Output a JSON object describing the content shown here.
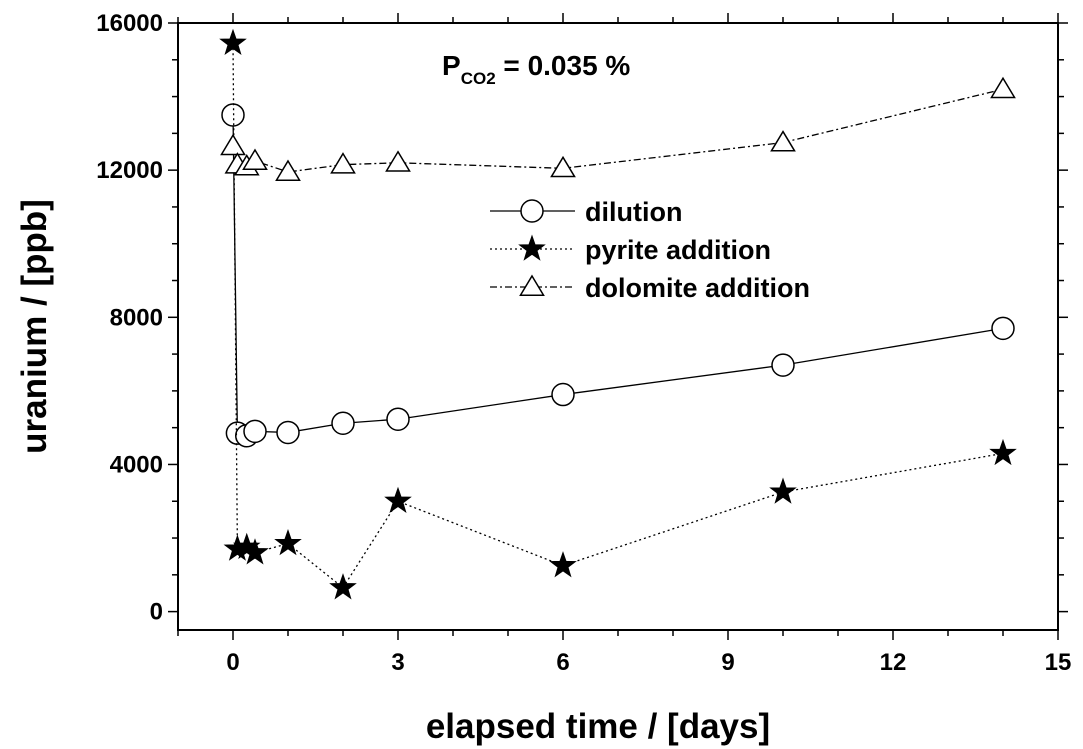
{
  "chart_data": {
    "type": "scatter",
    "title": "",
    "xlabel": "elapsed time / [days]",
    "ylabel": "uranium / [ppb]",
    "xlim": [
      -1,
      15
    ],
    "ylim": [
      -500,
      16000
    ],
    "xticks": [
      0,
      3,
      6,
      9,
      12,
      15
    ],
    "yticks": [
      0,
      4000,
      8000,
      12000,
      16000
    ],
    "xtick_labels": [
      "0",
      "3",
      "6",
      "9",
      "12",
      "15"
    ],
    "ytick_labels": [
      "0",
      "4000",
      "8000",
      "12000",
      "16000"
    ],
    "grid": false,
    "legend_position": "center-right",
    "annotation": {
      "main": "P",
      "sub": "CO2",
      "rest": " = 0.035 %"
    },
    "series": [
      {
        "name": "dilution",
        "marker": "circle",
        "line_style": "solid",
        "x": [
          0,
          0.08,
          0.25,
          0.4,
          1,
          2,
          3,
          6,
          10,
          14
        ],
        "y": [
          13500,
          4850,
          4780,
          4900,
          4870,
          5120,
          5230,
          5900,
          6700,
          7700
        ]
      },
      {
        "name": "pyrite addition",
        "marker": "star",
        "line_style": "dotted",
        "x": [
          0,
          0.08,
          0.25,
          0.4,
          1,
          2,
          3,
          6,
          10,
          14
        ],
        "y": [
          15450,
          1700,
          1750,
          1600,
          1850,
          650,
          3000,
          1250,
          3250,
          4300
        ]
      },
      {
        "name": "dolomite addition",
        "marker": "triangle",
        "line_style": "dashdot",
        "x": [
          0,
          0.08,
          0.25,
          0.4,
          1,
          2,
          3,
          6,
          10,
          14
        ],
        "y": [
          12650,
          12150,
          12100,
          12250,
          11950,
          12150,
          12200,
          12050,
          12750,
          14200
        ]
      }
    ]
  }
}
